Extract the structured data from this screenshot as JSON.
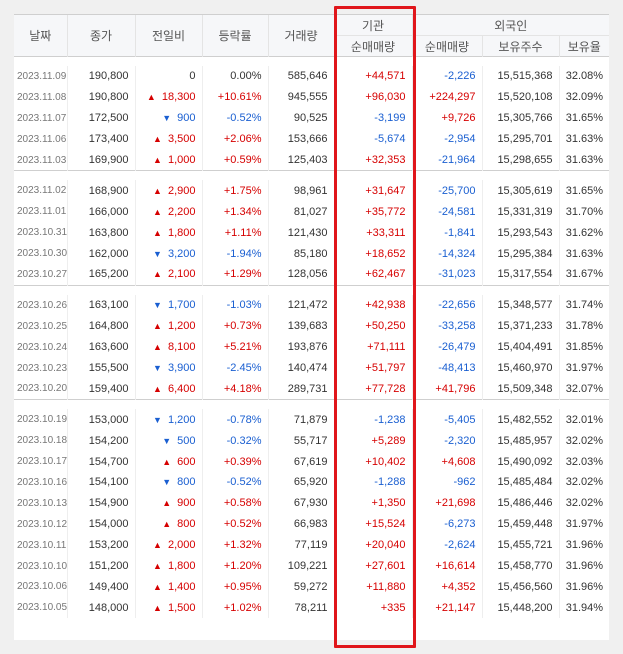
{
  "header": {
    "date": "날짜",
    "close": "종가",
    "change": "전일비",
    "rate": "등락률",
    "volume": "거래량",
    "institution": "기관",
    "institution_net": "순매매량",
    "foreign": "외국인",
    "foreign_net": "순매매량",
    "foreign_holding": "보유주수",
    "foreign_ratio": "보유율"
  },
  "colors": {
    "up": "#d60000",
    "down": "#1a5fd1",
    "highlight": "#e0161b"
  },
  "groups": [
    [
      {
        "date": "2023.11.09",
        "close": "190,800",
        "dir": "none",
        "change": "0",
        "rate": "0.00%",
        "volume": "585,646",
        "inst": "+44,571",
        "fnet": "-2,226",
        "fhold": "15,515,368",
        "fratio": "32.08%"
      },
      {
        "date": "2023.11.08",
        "close": "190,800",
        "dir": "up",
        "change": "18,300",
        "rate": "+10.61%",
        "volume": "945,555",
        "inst": "+96,030",
        "fnet": "+224,297",
        "fhold": "15,520,108",
        "fratio": "32.09%"
      },
      {
        "date": "2023.11.07",
        "close": "172,500",
        "dir": "down",
        "change": "900",
        "rate": "-0.52%",
        "volume": "90,525",
        "inst": "-3,199",
        "fnet": "+9,726",
        "fhold": "15,305,766",
        "fratio": "31.65%"
      },
      {
        "date": "2023.11.06",
        "close": "173,400",
        "dir": "up",
        "change": "3,500",
        "rate": "+2.06%",
        "volume": "153,666",
        "inst": "-5,674",
        "fnet": "-2,954",
        "fhold": "15,295,701",
        "fratio": "31.63%"
      },
      {
        "date": "2023.11.03",
        "close": "169,900",
        "dir": "up",
        "change": "1,000",
        "rate": "+0.59%",
        "volume": "125,403",
        "inst": "+32,353",
        "fnet": "-21,964",
        "fhold": "15,298,655",
        "fratio": "31.63%"
      }
    ],
    [
      {
        "date": "2023.11.02",
        "close": "168,900",
        "dir": "up",
        "change": "2,900",
        "rate": "+1.75%",
        "volume": "98,961",
        "inst": "+31,647",
        "fnet": "-25,700",
        "fhold": "15,305,619",
        "fratio": "31.65%"
      },
      {
        "date": "2023.11.01",
        "close": "166,000",
        "dir": "up",
        "change": "2,200",
        "rate": "+1.34%",
        "volume": "81,027",
        "inst": "+35,772",
        "fnet": "-24,581",
        "fhold": "15,331,319",
        "fratio": "31.70%"
      },
      {
        "date": "2023.10.31",
        "close": "163,800",
        "dir": "up",
        "change": "1,800",
        "rate": "+1.11%",
        "volume": "121,430",
        "inst": "+33,311",
        "fnet": "-1,841",
        "fhold": "15,293,543",
        "fratio": "31.62%"
      },
      {
        "date": "2023.10.30",
        "close": "162,000",
        "dir": "down",
        "change": "3,200",
        "rate": "-1.94%",
        "volume": "85,180",
        "inst": "+18,652",
        "fnet": "-14,324",
        "fhold": "15,295,384",
        "fratio": "31.63%"
      },
      {
        "date": "2023.10.27",
        "close": "165,200",
        "dir": "up",
        "change": "2,100",
        "rate": "+1.29%",
        "volume": "128,056",
        "inst": "+62,467",
        "fnet": "-31,023",
        "fhold": "15,317,554",
        "fratio": "31.67%"
      }
    ],
    [
      {
        "date": "2023.10.26",
        "close": "163,100",
        "dir": "down",
        "change": "1,700",
        "rate": "-1.03%",
        "volume": "121,472",
        "inst": "+42,938",
        "fnet": "-22,656",
        "fhold": "15,348,577",
        "fratio": "31.74%"
      },
      {
        "date": "2023.10.25",
        "close": "164,800",
        "dir": "up",
        "change": "1,200",
        "rate": "+0.73%",
        "volume": "139,683",
        "inst": "+50,250",
        "fnet": "-33,258",
        "fhold": "15,371,233",
        "fratio": "31.78%"
      },
      {
        "date": "2023.10.24",
        "close": "163,600",
        "dir": "up",
        "change": "8,100",
        "rate": "+5.21%",
        "volume": "193,876",
        "inst": "+71,111",
        "fnet": "-26,479",
        "fhold": "15,404,491",
        "fratio": "31.85%"
      },
      {
        "date": "2023.10.23",
        "close": "155,500",
        "dir": "down",
        "change": "3,900",
        "rate": "-2.45%",
        "volume": "140,474",
        "inst": "+51,797",
        "fnet": "-48,413",
        "fhold": "15,460,970",
        "fratio": "31.97%"
      },
      {
        "date": "2023.10.20",
        "close": "159,400",
        "dir": "up",
        "change": "6,400",
        "rate": "+4.18%",
        "volume": "289,731",
        "inst": "+77,728",
        "fnet": "+41,796",
        "fhold": "15,509,348",
        "fratio": "32.07%"
      }
    ],
    [
      {
        "date": "2023.10.19",
        "close": "153,000",
        "dir": "down",
        "change": "1,200",
        "rate": "-0.78%",
        "volume": "71,879",
        "inst": "-1,238",
        "fnet": "-5,405",
        "fhold": "15,482,552",
        "fratio": "32.01%"
      },
      {
        "date": "2023.10.18",
        "close": "154,200",
        "dir": "down",
        "change": "500",
        "rate": "-0.32%",
        "volume": "55,717",
        "inst": "+5,289",
        "fnet": "-2,320",
        "fhold": "15,485,957",
        "fratio": "32.02%"
      },
      {
        "date": "2023.10.17",
        "close": "154,700",
        "dir": "up",
        "change": "600",
        "rate": "+0.39%",
        "volume": "67,619",
        "inst": "+10,402",
        "fnet": "+4,608",
        "fhold": "15,490,092",
        "fratio": "32.03%"
      },
      {
        "date": "2023.10.16",
        "close": "154,100",
        "dir": "down",
        "change": "800",
        "rate": "-0.52%",
        "volume": "65,920",
        "inst": "-1,288",
        "fnet": "-962",
        "fhold": "15,485,484",
        "fratio": "32.02%"
      },
      {
        "date": "2023.10.13",
        "close": "154,900",
        "dir": "up",
        "change": "900",
        "rate": "+0.58%",
        "volume": "67,930",
        "inst": "+1,350",
        "fnet": "+21,698",
        "fhold": "15,486,446",
        "fratio": "32.02%"
      },
      {
        "date": "2023.10.12",
        "close": "154,000",
        "dir": "up",
        "change": "800",
        "rate": "+0.52%",
        "volume": "66,983",
        "inst": "+15,524",
        "fnet": "-6,273",
        "fhold": "15,459,448",
        "fratio": "31.97%"
      },
      {
        "date": "2023.10.11",
        "close": "153,200",
        "dir": "up",
        "change": "2,000",
        "rate": "+1.32%",
        "volume": "77,119",
        "inst": "+20,040",
        "fnet": "-2,624",
        "fhold": "15,455,721",
        "fratio": "31.96%"
      },
      {
        "date": "2023.10.10",
        "close": "151,200",
        "dir": "up",
        "change": "1,800",
        "rate": "+1.20%",
        "volume": "109,221",
        "inst": "+27,601",
        "fnet": "+16,614",
        "fhold": "15,458,770",
        "fratio": "31.96%"
      },
      {
        "date": "2023.10.06",
        "close": "149,400",
        "dir": "up",
        "change": "1,400",
        "rate": "+0.95%",
        "volume": "59,272",
        "inst": "+11,880",
        "fnet": "+4,352",
        "fhold": "15,456,560",
        "fratio": "31.96%"
      },
      {
        "date": "2023.10.05",
        "close": "148,000",
        "dir": "up",
        "change": "1,500",
        "rate": "+1.02%",
        "volume": "78,211",
        "inst": "+335",
        "fnet": "+21,147",
        "fhold": "15,448,200",
        "fratio": "31.94%"
      }
    ]
  ]
}
